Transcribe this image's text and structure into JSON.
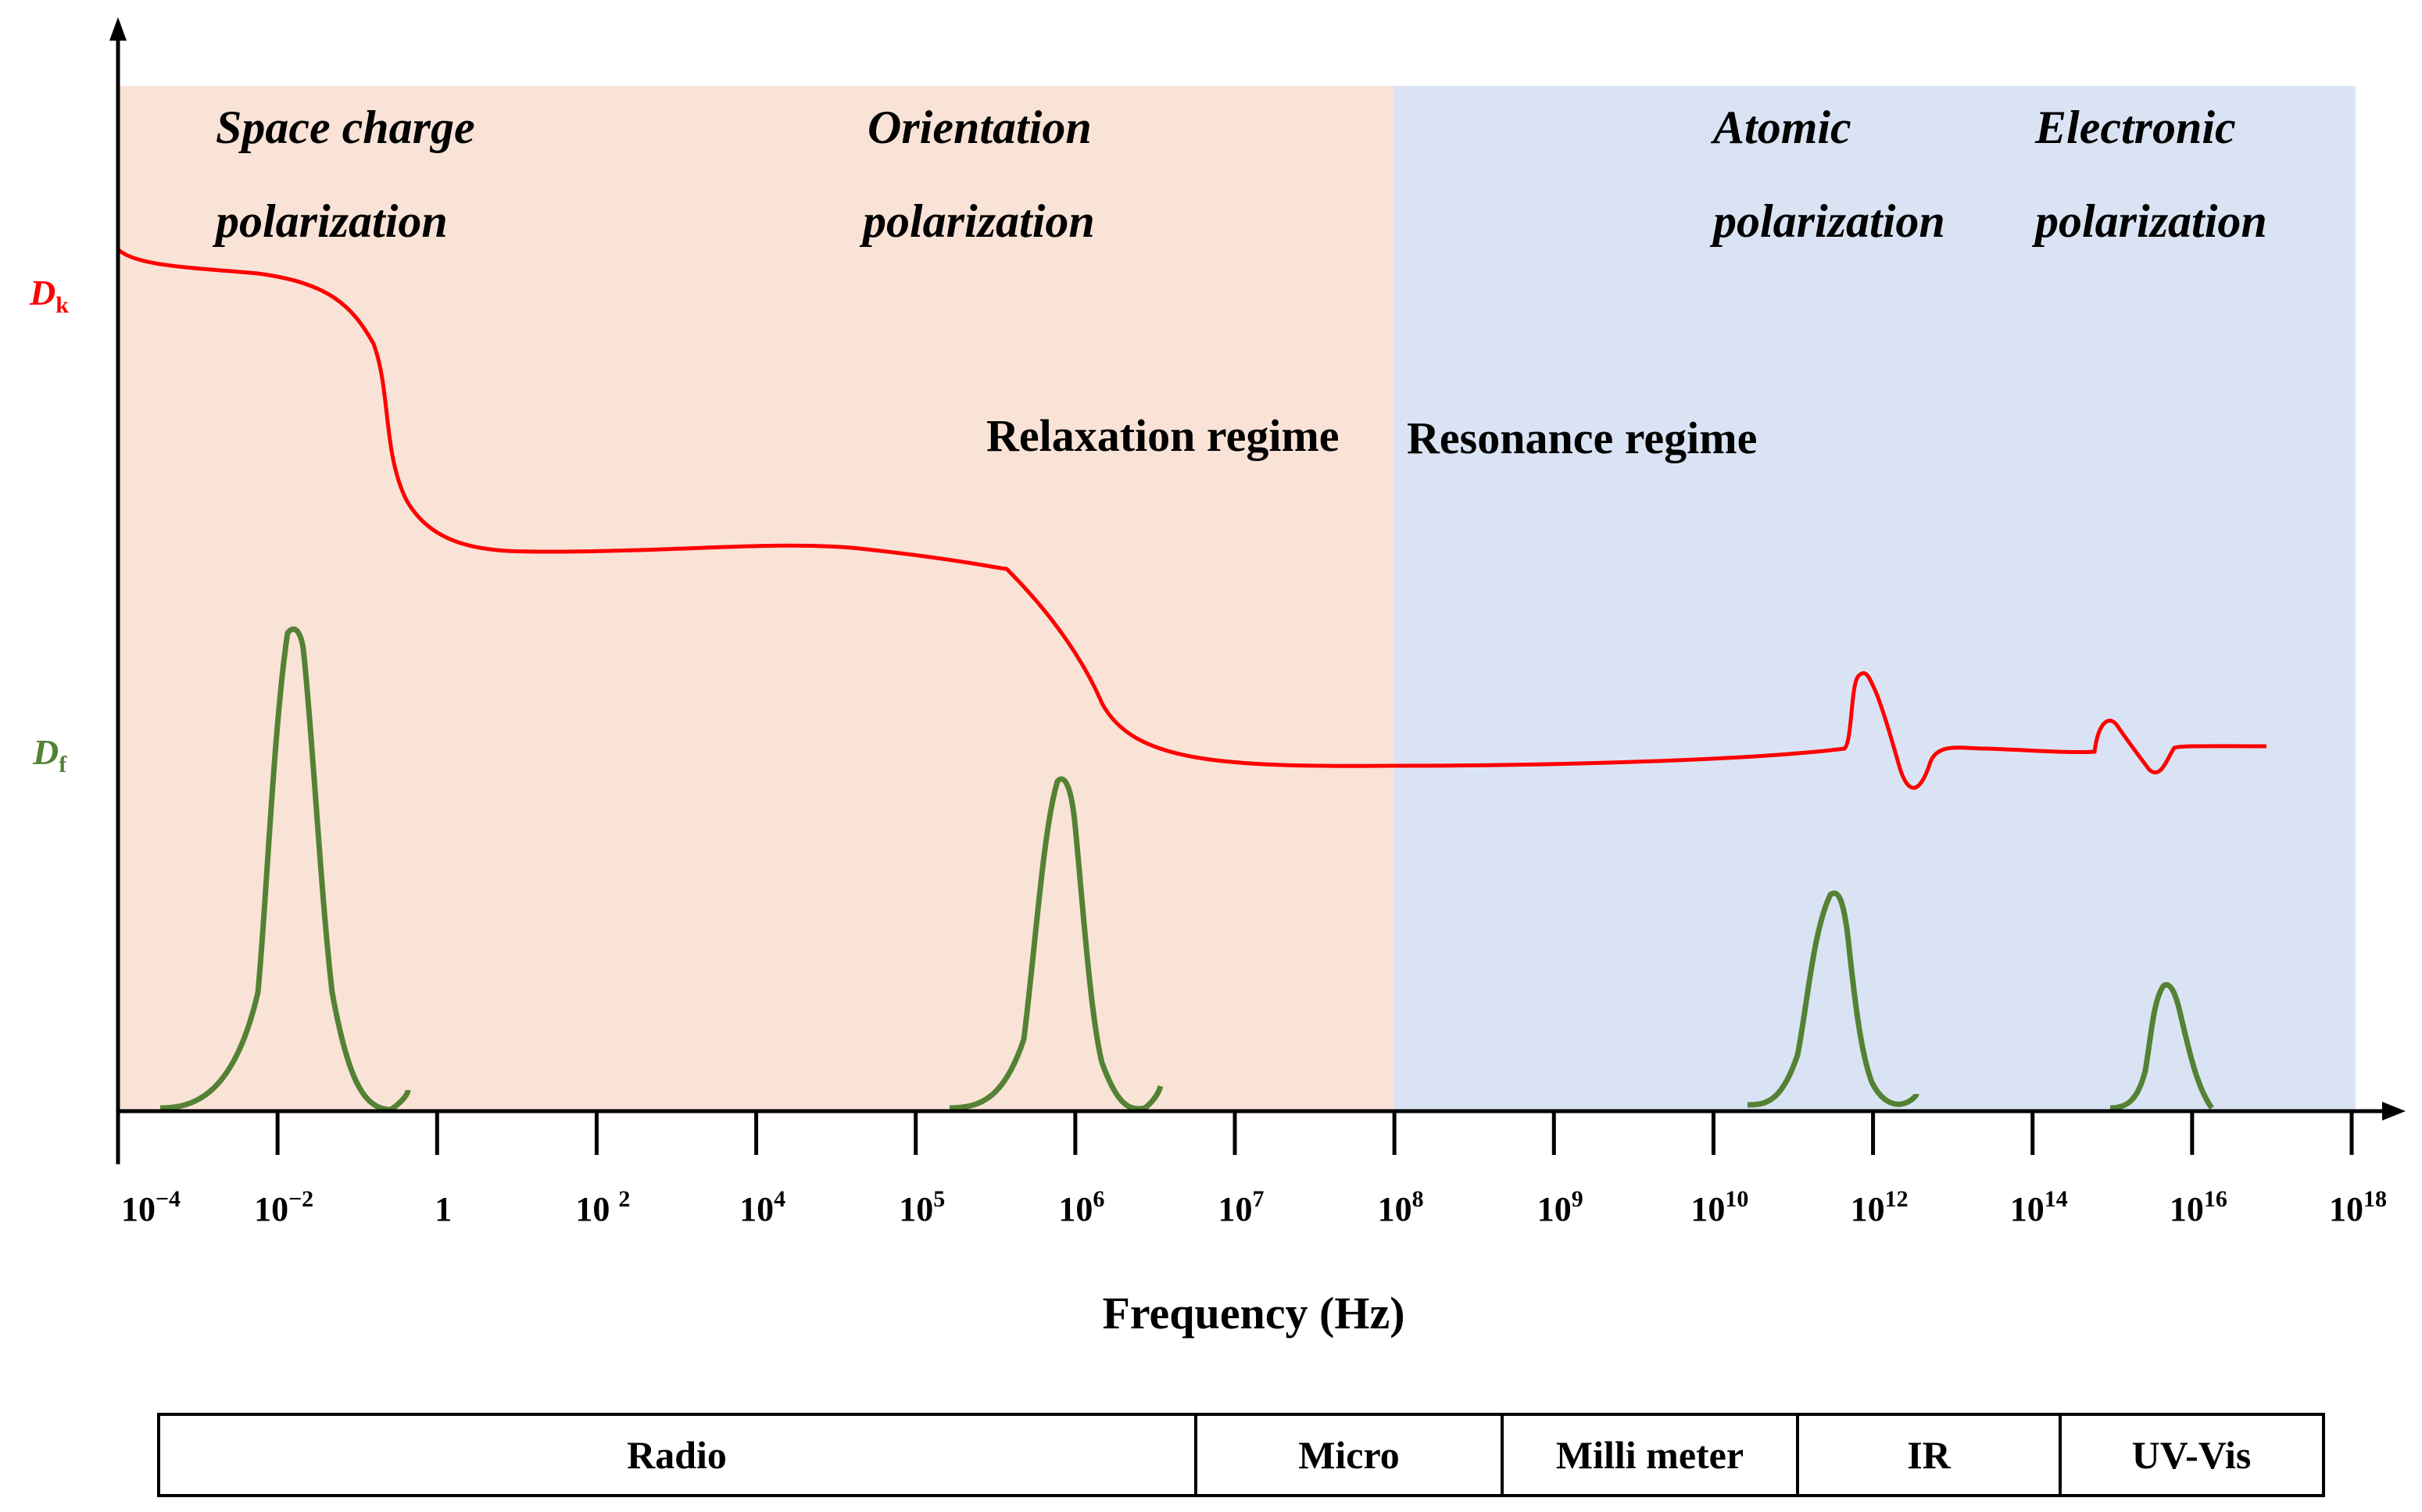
{
  "colors": {
    "relaxation_bg": "#f9e3d6",
    "resonance_bg": "#dae3f3",
    "dk_curve": "#ff0000",
    "df_curve": "#548235",
    "axis": "#000000"
  },
  "y_axis": {
    "dk_label": {
      "main": "D",
      "sub": "k"
    },
    "df_label": {
      "main": "D",
      "sub": "f"
    }
  },
  "regions": {
    "relaxation": "Relaxation regime",
    "resonance": "Resonance regime"
  },
  "mechanisms": [
    {
      "line1": "Space  charge",
      "line2": "polarization"
    },
    {
      "line1": "Orientation",
      "line2": "polarization"
    },
    {
      "line1": "Atomic",
      "line2": "polarization"
    },
    {
      "line1": "Electronic",
      "line2": "polarization"
    }
  ],
  "x_axis": {
    "label": "Frequency (Hz)",
    "ticks": [
      {
        "base": "10",
        "exp": "−4"
      },
      {
        "base": "10",
        "exp": "−2"
      },
      {
        "base": "1",
        "exp": ""
      },
      {
        "base": "10 ",
        "exp": "2"
      },
      {
        "base": "10",
        "exp": "4"
      },
      {
        "base": "10",
        "exp": "5"
      },
      {
        "base": "10",
        "exp": "6"
      },
      {
        "base": "10",
        "exp": "7"
      },
      {
        "base": "10",
        "exp": "8"
      },
      {
        "base": "10",
        "exp": "9"
      },
      {
        "base": "10",
        "exp": "10"
      },
      {
        "base": "10",
        "exp": "12"
      },
      {
        "base": "10",
        "exp": "14"
      },
      {
        "base": "10",
        "exp": "16"
      },
      {
        "base": "10",
        "exp": "18"
      }
    ]
  },
  "bands": [
    "Radio",
    "Micro",
    "Milli meter",
    "IR",
    "UV-Vis"
  ]
}
